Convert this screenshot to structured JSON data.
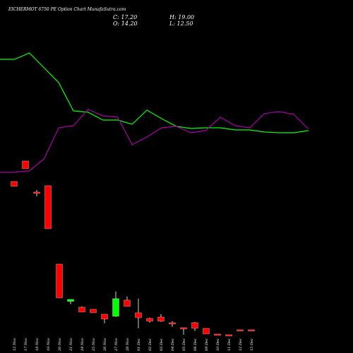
{
  "header": {
    "title": "EICHERMOT 6750  PE Option Chart MunafaSutra.com",
    "close": "C: 17.20",
    "open": "O: 14.20",
    "high": "H: 19.00",
    "low": "L: 12.50"
  },
  "chart_data": {
    "type": "candlestick",
    "colors": {
      "up": "#00ff00",
      "down": "#ff0000",
      "green_line": "#00ff00",
      "purple_line": "#aa00aa",
      "background": "#000000"
    },
    "categories": [
      "12 Nov",
      "17 Nov",
      "18 Nov",
      "19 Nov",
      "20 Nov",
      "21 Nov",
      "24 Nov",
      "25 Nov",
      "26 Nov",
      "27 Nov",
      "28 Nov",
      "01 Dec",
      "02 Dec",
      "03 Dec",
      "04 Dec",
      "05 Dec",
      "08 Dec",
      "09 Dec",
      "10 Dec",
      "11 Dec",
      "12 Dec",
      "15 Dec"
    ],
    "candles": [
      {
        "o": 201,
        "h": 201,
        "l": 194,
        "c": 194
      },
      {
        "o": 230,
        "h": 230,
        "l": 219,
        "c": 219
      },
      {
        "o": 186,
        "h": 189,
        "l": 180,
        "c": 184
      },
      {
        "o": 195,
        "h": 195,
        "l": 134,
        "c": 134
      },
      {
        "o": 84,
        "h": 84,
        "l": 36,
        "c": 36
      },
      {
        "o": 31,
        "h": 33,
        "l": 27,
        "c": 34
      },
      {
        "o": 23,
        "h": 24,
        "l": 16,
        "c": 16
      },
      {
        "o": 20,
        "h": 20,
        "l": 15,
        "c": 15
      },
      {
        "o": 13,
        "h": 13,
        "l": 0,
        "c": 6
      },
      {
        "o": 10,
        "h": 45,
        "l": 9,
        "c": 35
      },
      {
        "o": 33,
        "h": 38,
        "l": 24,
        "c": 24
      },
      {
        "o": 15,
        "h": 35,
        "l": -7,
        "c": 8
      },
      {
        "o": 7,
        "h": 8,
        "l": 1,
        "c": 3
      },
      {
        "o": 9,
        "h": 13,
        "l": 2,
        "c": 3
      },
      {
        "o": 1,
        "h": 3,
        "l": -5,
        "c": 1
      },
      {
        "o": -6,
        "h": -6,
        "l": -16,
        "c": -6
      },
      {
        "o": 1,
        "h": 2,
        "l": -11,
        "c": -7
      },
      {
        "o": -7,
        "h": -7,
        "l": -15,
        "c": -15
      },
      {
        "o": -15,
        "h": -15,
        "l": -16,
        "c": -16
      },
      {
        "o": -16,
        "h": -16,
        "l": -18,
        "c": -17
      },
      {
        "o": -9,
        "h": -9,
        "l": -9,
        "c": -9
      },
      {
        "o": -9,
        "h": -9,
        "l": -9,
        "c": -9
      }
    ],
    "green_line": [
      416,
      416,
      425,
      404,
      383,
      343,
      341,
      330,
      330,
      324,
      344,
      332,
      321,
      318,
      319,
      319,
      316,
      316,
      313,
      312,
      312,
      315
    ],
    "purple_line": [
      256,
      256,
      258,
      275,
      319,
      322,
      345,
      336,
      334,
      295,
      306,
      319,
      321,
      312,
      315,
      334,
      322,
      319,
      339,
      342,
      338,
      317
    ]
  }
}
